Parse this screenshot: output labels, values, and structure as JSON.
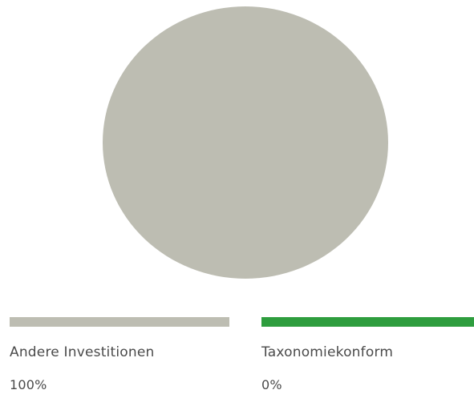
{
  "chart_data": {
    "type": "pie",
    "title": "",
    "slices": [
      {
        "label": "Andere Investitionen",
        "value": 100,
        "display": "100%",
        "color": "#bdbdb2"
      },
      {
        "label": "Taxonomiekonform",
        "value": 0,
        "display": "0%",
        "color": "#2e9d3e"
      }
    ],
    "legend_position": "bottom"
  }
}
